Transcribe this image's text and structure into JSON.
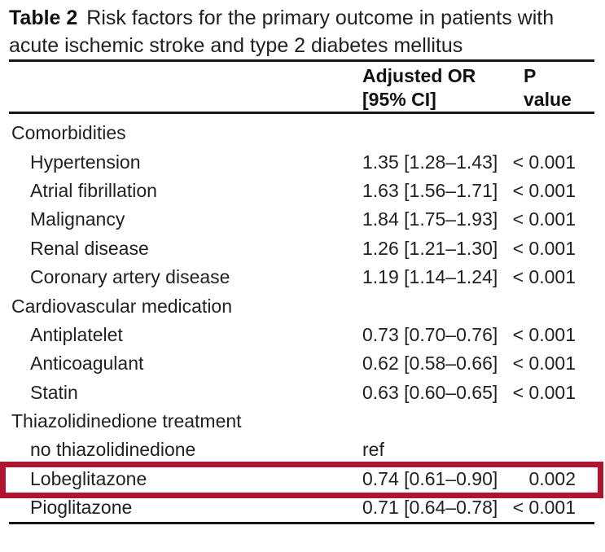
{
  "title": {
    "table_number": "Table 2",
    "caption_line1": "Risk factors for the primary outcome in patients with",
    "caption_line2": "acute ischemic stroke and type 2 diabetes mellitus"
  },
  "columns": {
    "or_header_line1": "Adjusted OR",
    "or_header_line2": "[95% CI]",
    "p_header_line1": "P",
    "p_header_line2": "value"
  },
  "rows": [
    {
      "label": "Comorbidities",
      "or": "",
      "p": ""
    },
    {
      "label": "Hypertension",
      "or": "1.35 [1.28–1.43]",
      "p": "< 0.001"
    },
    {
      "label": "Atrial fibrillation",
      "or": "1.63 [1.56–1.71]",
      "p": "< 0.001"
    },
    {
      "label": "Malignancy",
      "or": "1.84 [1.75–1.93]",
      "p": "< 0.001"
    },
    {
      "label": "Renal disease",
      "or": "1.26 [1.21–1.30]",
      "p": "< 0.001"
    },
    {
      "label": "Coronary artery disease",
      "or": "1.19 [1.14–1.24]",
      "p": "< 0.001"
    },
    {
      "label": "Cardiovascular medication",
      "or": "",
      "p": ""
    },
    {
      "label": "Antiplatelet",
      "or": "0.73 [0.70–0.76]",
      "p": "< 0.001"
    },
    {
      "label": "Anticoagulant",
      "or": "0.62 [0.58–0.66]",
      "p": "< 0.001"
    },
    {
      "label": "Statin",
      "or": "0.63 [0.60–0.65]",
      "p": "< 0.001"
    },
    {
      "label": "Thiazolidinedione treatment",
      "or": "",
      "p": ""
    },
    {
      "label": "no thiazolidinedione",
      "or": "ref",
      "p": ""
    },
    {
      "label": "Lobeglitazone",
      "or": "0.74 [0.61–0.90]",
      "p": "0.002"
    },
    {
      "label": "Pioglitazone",
      "or": "0.71 [0.64–0.78]",
      "p": "< 0.001"
    }
  ],
  "highlight": {
    "row_label": "Lobeglitazone",
    "color": "#b01430"
  }
}
